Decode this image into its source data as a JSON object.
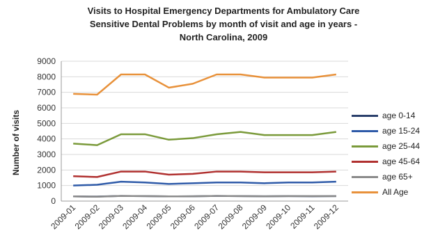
{
  "chart_data": {
    "type": "line",
    "title_lines": [
      "Visits to Hospital Emergency Departments for Ambulatory Care",
      "Sensitive Dental Problems by month of visit and age in years -",
      "North Carolina, 2009"
    ],
    "xlabel": "",
    "ylabel": "Number of visits",
    "ylim": [
      0,
      9000
    ],
    "yticks": [
      {
        "value": 0,
        "label": "0"
      },
      {
        "value": 1000,
        "label": "1000"
      },
      {
        "value": 2000,
        "label": "2000"
      },
      {
        "value": 3000,
        "label": "3000"
      },
      {
        "value": 4000,
        "label": "4000"
      },
      {
        "value": 5000,
        "label": "5000"
      },
      {
        "value": 6000,
        "label": "6000"
      },
      {
        "value": 7000,
        "label": "7000"
      },
      {
        "value": 8000,
        "label": "8000"
      },
      {
        "value": 9000,
        "label": "9000"
      }
    ],
    "categories": [
      "2009-01",
      "2009-02",
      "2009-03",
      "2009-04",
      "2009-05",
      "2009-06",
      "2009-07",
      "2009-08",
      "2009-09",
      "2009-10",
      "2009-11",
      "2009-12"
    ],
    "grid": true,
    "legend_position": "right",
    "series": [
      {
        "name": "age 0-14",
        "color": "#2a3f6b",
        "values": [
          300,
          290,
          330,
          320,
          300,
          310,
          330,
          320,
          310,
          320,
          310,
          320
        ]
      },
      {
        "name": "age 15-24",
        "color": "#2e5aa8",
        "values": [
          1000,
          1050,
          1250,
          1200,
          1100,
          1150,
          1200,
          1200,
          1150,
          1200,
          1200,
          1250
        ]
      },
      {
        "name": "age 25-44",
        "color": "#7a9a3a",
        "values": [
          3700,
          3600,
          4300,
          4300,
          3950,
          4050,
          4300,
          4450,
          4250,
          4250,
          4250,
          4450
        ]
      },
      {
        "name": "age 45-64",
        "color": "#b0302f",
        "values": [
          1600,
          1550,
          1900,
          1900,
          1700,
          1750,
          1900,
          1900,
          1850,
          1850,
          1850,
          1900
        ]
      },
      {
        "name": "age 65+",
        "color": "#8a8a8a",
        "values": [
          300,
          280,
          330,
          320,
          300,
          310,
          330,
          320,
          310,
          320,
          320,
          320
        ]
      },
      {
        "name": "All Age",
        "color": "#e8913a",
        "values": [
          6900,
          6850,
          8150,
          8150,
          7300,
          7550,
          8150,
          8150,
          7950,
          7950,
          7950,
          8150
        ]
      }
    ]
  }
}
